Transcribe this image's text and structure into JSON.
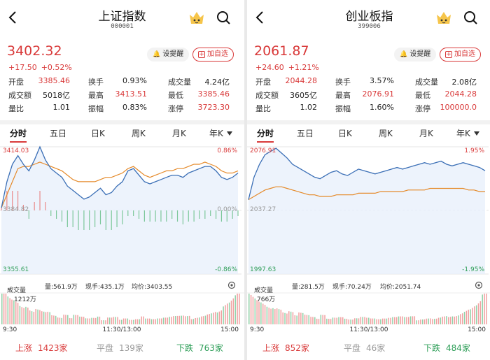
{
  "panels": [
    {
      "title": "上证指数",
      "code": "000001",
      "price": "3402.32",
      "change": "+17.50",
      "change_pct": "+0.52%",
      "remind_label": "设提醒",
      "add_label": "加自选",
      "stats": [
        [
          "开盘",
          "3385.46",
          "换手",
          "0.93%",
          "成交量",
          "4.24亿"
        ],
        [
          "成交额",
          "5018亿",
          "最高",
          "3413.51",
          "最低",
          "3385.46"
        ],
        [
          "量比",
          "1.01",
          "振幅",
          "0.83%",
          "涨停",
          "3723.30"
        ]
      ],
      "tabs": [
        "分时",
        "五日",
        "日K",
        "周K",
        "月K",
        "年K"
      ],
      "chart": {
        "high_label": "3414.03",
        "high_pct": "0.86%",
        "mid_label": "3384.82",
        "mid_pct": "0.00%",
        "low_label": "3355.61",
        "low_pct": "-0.86%",
        "prev_close": 3384.82,
        "y_max": 3414.03,
        "y_min": 3355.61,
        "price_series": [
          3386,
          3398,
          3406,
          3410,
          3406,
          3403,
          3408,
          3414,
          3408,
          3404,
          3402,
          3400,
          3396,
          3394,
          3392,
          3390,
          3391,
          3393,
          3395,
          3392,
          3393,
          3396,
          3398,
          3403,
          3404,
          3401,
          3398,
          3397,
          3398,
          3399,
          3400,
          3401,
          3401,
          3400,
          3402,
          3403,
          3404,
          3405,
          3405,
          3403,
          3400,
          3399,
          3400,
          3402
        ],
        "avg_series": [
          3386,
          3392,
          3398,
          3404,
          3405,
          3405,
          3406,
          3407,
          3406,
          3405,
          3404,
          3403,
          3401,
          3399,
          3398,
          3398,
          3398,
          3398,
          3399,
          3400,
          3400,
          3401,
          3402,
          3404,
          3405,
          3403,
          3401,
          3400,
          3401,
          3402,
          3403,
          3403,
          3404,
          3404,
          3405,
          3406,
          3406,
          3407,
          3406,
          3405,
          3403,
          3402,
          3402,
          3403
        ],
        "line_color": "#3b6fb6",
        "avg_color": "#e58a2a"
      },
      "volume": {
        "label": "成交量",
        "amount": "量:561.9万",
        "current": "现手:435.1万",
        "avg_price": "均价:3403.55",
        "max_label": "1212万",
        "time_start": "9:30",
        "time_mid": "11:30/13:00",
        "time_end": "15:00"
      },
      "footer": {
        "up_label": "上涨",
        "up_count": "1423家",
        "flat_label": "平盘",
        "flat_count": "139家",
        "down_label": "下跌",
        "down_count": "763家"
      }
    },
    {
      "title": "创业板指",
      "code": "399006",
      "price": "2061.87",
      "change": "+24.60",
      "change_pct": "+1.21%",
      "remind_label": "设提醒",
      "add_label": "加自选",
      "stats": [
        [
          "开盘",
          "2044.28",
          "换手",
          "3.57%",
          "成交量",
          "2.08亿"
        ],
        [
          "成交额",
          "3605亿",
          "最高",
          "2076.91",
          "最低",
          "2044.28"
        ],
        [
          "量比",
          "1.02",
          "振幅",
          "1.60%",
          "涨停",
          "100000.0"
        ]
      ],
      "tabs": [
        "分时",
        "五日",
        "日K",
        "周K",
        "月K",
        "年K"
      ],
      "chart": {
        "high_label": "2076.91",
        "high_pct": "1.95%",
        "mid_label": "2037.27",
        "mid_pct": "",
        "low_label": "1997.63",
        "low_pct": "-1.95%",
        "prev_close": 2037.27,
        "y_max": 2076.91,
        "y_min": 1997.63,
        "price_series": [
          2044,
          2058,
          2066,
          2072,
          2074,
          2076,
          2073,
          2070,
          2066,
          2064,
          2062,
          2060,
          2058,
          2057,
          2059,
          2061,
          2062,
          2060,
          2059,
          2061,
          2063,
          2062,
          2061,
          2060,
          2061,
          2062,
          2063,
          2064,
          2063,
          2064,
          2065,
          2066,
          2067,
          2066,
          2067,
          2068,
          2066,
          2065,
          2066,
          2067,
          2066,
          2065,
          2064,
          2062
        ],
        "avg_series": [
          2044,
          2046,
          2048,
          2050,
          2051,
          2052,
          2052,
          2051,
          2050,
          2049,
          2048,
          2047,
          2047,
          2046,
          2046,
          2046,
          2047,
          2047,
          2047,
          2047,
          2048,
          2048,
          2048,
          2048,
          2049,
          2049,
          2049,
          2049,
          2049,
          2050,
          2050,
          2050,
          2050,
          2051,
          2051,
          2051,
          2051,
          2051,
          2051,
          2051,
          2050,
          2050,
          2049,
          2049
        ],
        "line_color": "#3b6fb6",
        "avg_color": "#e58a2a"
      },
      "volume": {
        "label": "成交量",
        "amount": "量:281.5万",
        "current": "现手:70.24万",
        "avg_price": "均价:2051.74",
        "max_label": "766万",
        "time_start": "9:30",
        "time_mid": "11:30/13:00",
        "time_end": "15:00"
      },
      "footer": {
        "up_label": "上涨",
        "up_count": "852家",
        "flat_label": "平盘",
        "flat_count": "46家",
        "down_label": "下跌",
        "down_count": "484家"
      }
    }
  ]
}
